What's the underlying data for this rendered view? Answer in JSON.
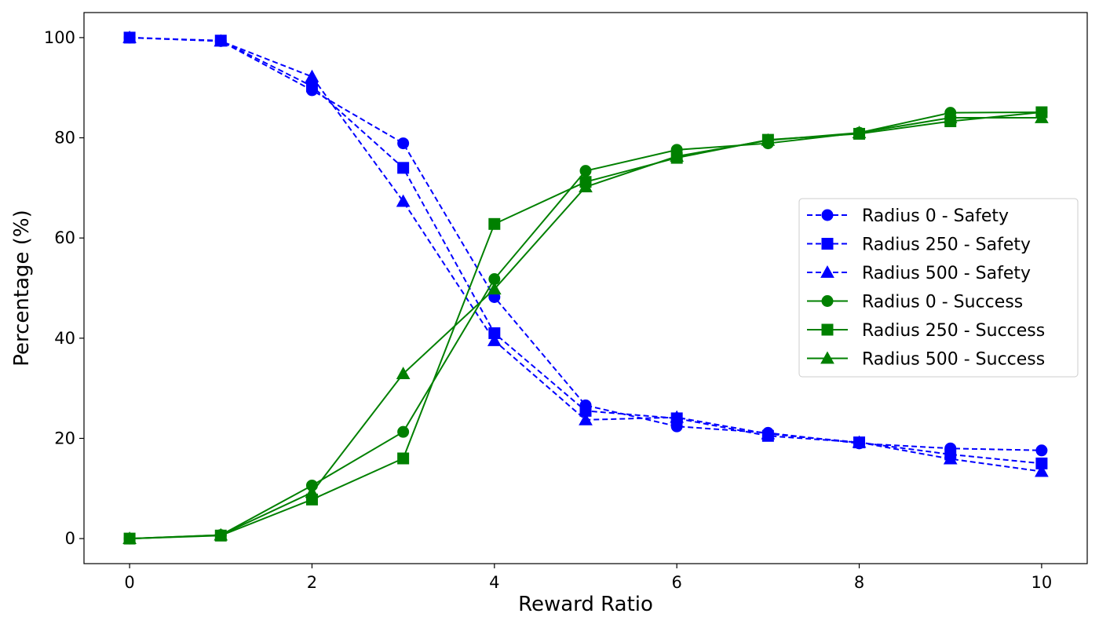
{
  "chart_data": {
    "type": "line",
    "title": "",
    "xlabel": "Reward Ratio",
    "ylabel": "Percentage (%)",
    "xlim": [
      -0.5,
      10.5
    ],
    "ylim": [
      -5,
      105
    ],
    "xticks": [
      0,
      2,
      4,
      6,
      8,
      10
    ],
    "yticks": [
      0,
      20,
      40,
      60,
      80,
      100
    ],
    "grid": false,
    "legend_position": "center-right",
    "x": [
      0,
      1,
      2,
      3,
      4,
      5,
      6,
      7,
      8,
      9,
      10
    ],
    "series": [
      {
        "name": "Radius 0 - Safety",
        "color": "#0000ff",
        "line": "dashed",
        "marker": "circle",
        "values": [
          100,
          99.3,
          89.5,
          78.9,
          48.2,
          26.6,
          22.4,
          21.1,
          19.0,
          18.0,
          17.6
        ]
      },
      {
        "name": "Radius 250 - Safety",
        "color": "#0000ff",
        "line": "dashed",
        "marker": "square",
        "values": [
          100,
          99.4,
          90.3,
          74.0,
          41.0,
          25.5,
          24.0,
          20.5,
          19.2,
          16.8,
          15.0
        ]
      },
      {
        "name": "Radius 500 - Safety",
        "color": "#0000ff",
        "line": "dashed",
        "marker": "triangle",
        "values": [
          100,
          99.3,
          92.2,
          67.3,
          39.5,
          23.7,
          24.2,
          20.9,
          19.2,
          15.9,
          13.4
        ]
      },
      {
        "name": "Radius 0 - Success",
        "color": "#008000",
        "line": "solid",
        "marker": "circle",
        "values": [
          0,
          0.7,
          10.6,
          21.3,
          51.8,
          73.4,
          77.6,
          78.9,
          81.0,
          85.0,
          85.1
        ]
      },
      {
        "name": "Radius 250 - Success",
        "color": "#008000",
        "line": "solid",
        "marker": "square",
        "values": [
          0,
          0.6,
          7.8,
          16.0,
          62.8,
          71.2,
          76.0,
          79.6,
          80.8,
          83.3,
          85.1
        ]
      },
      {
        "name": "Radius 500 - Success",
        "color": "#008000",
        "line": "solid",
        "marker": "triangle",
        "values": [
          0,
          0.7,
          9.2,
          32.9,
          49.8,
          70.2,
          76.3,
          79.5,
          81.0,
          84.0,
          84.0
        ]
      }
    ]
  }
}
